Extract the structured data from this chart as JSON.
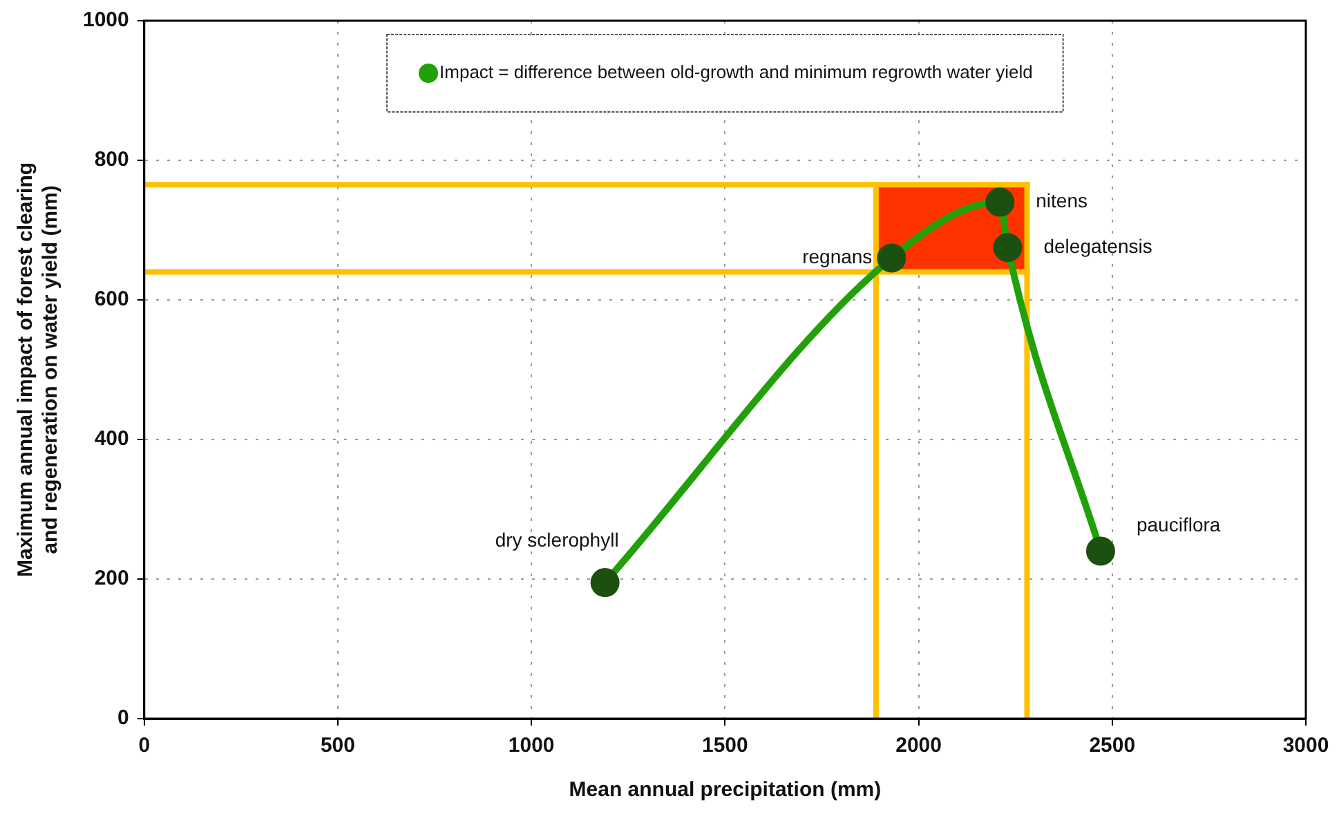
{
  "chart_data": {
    "type": "line",
    "xlabel": "Mean annual precipitation (mm)",
    "ylabel": "Maximum annual impact of forest clearing and regeneration on water yield (mm)",
    "x": [
      1190,
      1930,
      2210,
      2230,
      2470
    ],
    "series": [
      {
        "name": "Impact = difference between old-growth and minimum regrowth water yield",
        "color": "#22a00a",
        "colors": [
          "#1a5010",
          "#1a5010",
          "#1a5010",
          "#1a5010",
          "#1a5010"
        ],
        "values": [
          195,
          660,
          740,
          675,
          240
        ]
      }
    ],
    "xlim": [
      0,
      3000
    ],
    "xticks": [
      0,
      500,
      1000,
      1500,
      2000,
      2500,
      3000
    ],
    "ylim": [
      0,
      1000
    ],
    "yticks": [
      0,
      200,
      400,
      600,
      800,
      1000
    ],
    "ref_lines": [
      {
        "axis": "x",
        "value": 1890,
        "color": "#ffc000"
      },
      {
        "axis": "x",
        "value": 2280,
        "color": "#ffc000"
      },
      {
        "axis": "y",
        "value": 640,
        "color": "#ffc000"
      },
      {
        "axis": "y",
        "value": 765,
        "color": "#ffc000"
      }
    ],
    "bands": [
      {
        "axis": "y",
        "from": 640,
        "to": 765,
        "color": "#ff3300"
      }
    ],
    "annotations": [
      {
        "text": "dry sclerophyll",
        "x": 1190,
        "y": 195
      },
      {
        "text": "regnans",
        "x": 1930,
        "y": 660
      },
      {
        "text": "nitens",
        "x": 2210,
        "y": 740
      },
      {
        "text": "delegatensis",
        "x": 2230,
        "y": 675
      },
      {
        "text": "pauciflora",
        "x": 2470,
        "y": 240
      }
    ],
    "grid": true,
    "legend": "top",
    "marker": "circle",
    "line_style": "solid"
  }
}
